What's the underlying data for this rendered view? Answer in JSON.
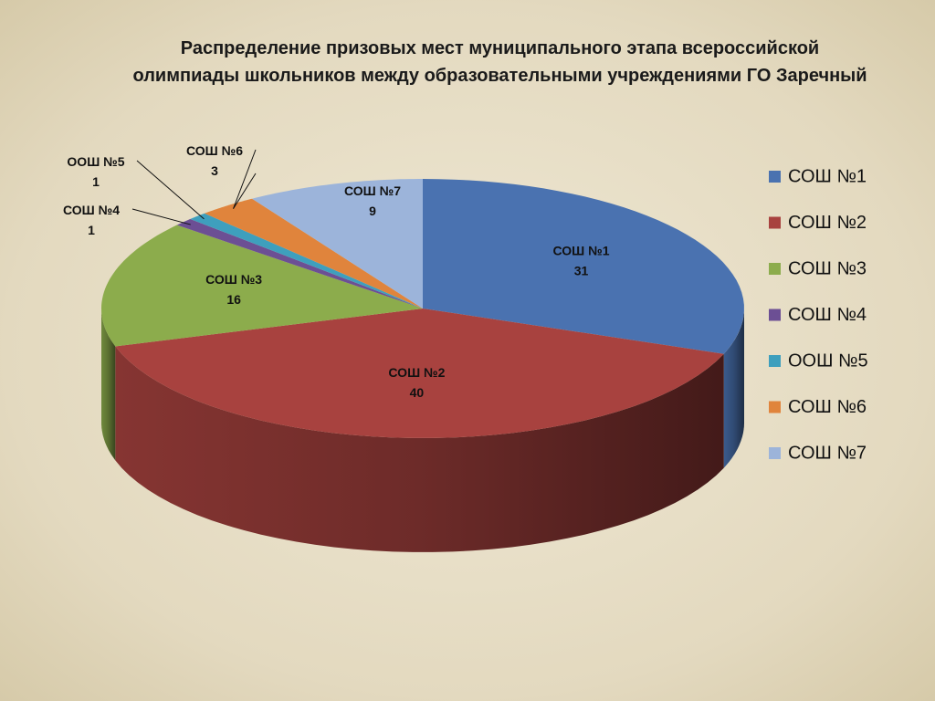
{
  "chart_data": {
    "type": "pie",
    "title": "Распределение призовых мест муниципального этапа всероссийской олимпиады школьников между образовательными учреждениями ГО Заречный",
    "categories": [
      "СОШ №1",
      "СОШ №2",
      "СОШ №3",
      "СОШ №4",
      "ООШ №5",
      "СОШ №6",
      "СОШ №7"
    ],
    "values": [
      31,
      40,
      16,
      1,
      1,
      3,
      9
    ],
    "colors": [
      "#4a72b0",
      "#a8423f",
      "#8cac4c",
      "#6c4f94",
      "#3e9fbd",
      "#e0843c",
      "#9cb4da"
    ],
    "legend": "right"
  }
}
